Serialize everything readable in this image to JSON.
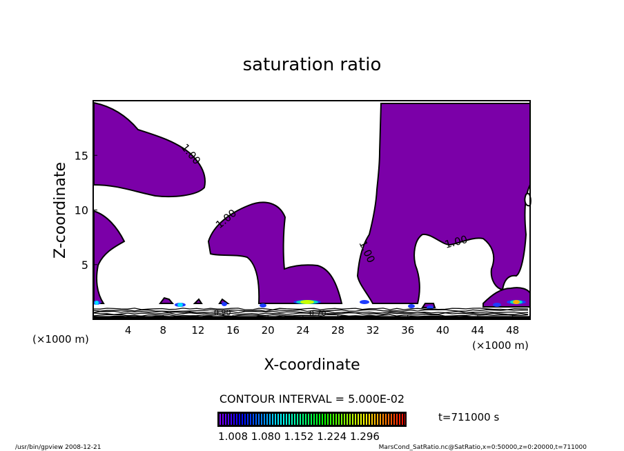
{
  "chart_data": {
    "type": "contour",
    "title": "saturation ratio",
    "xlabel": "X-coordinate",
    "ylabel": "Z-coordinate",
    "x_unit_label": "(×1000 m)",
    "y_unit_label": "(×1000 m)",
    "xlim": [
      0,
      50
    ],
    "ylim": [
      0,
      20
    ],
    "xticks": [
      4,
      8,
      12,
      16,
      20,
      24,
      28,
      32,
      36,
      40,
      44,
      48
    ],
    "yticks": [
      5,
      10,
      15
    ],
    "contour_labels": [
      "1.00",
      "1.00",
      "1.00",
      "1.00",
      "1.00",
      "0.90",
      "0.70"
    ],
    "contour_interval_text": "CONTOUR INTERVAL = 5.000E-02",
    "colorbar": {
      "min": 1.0,
      "max": 1.35,
      "tick_labels": [
        "1.008",
        "1.080",
        "1.152",
        "1.224",
        "1.296"
      ]
    },
    "fill_color": "#7b00a8",
    "time_label": "t=711000 s"
  },
  "footer": {
    "left": "/usr/bin/gpview   2008-12-21",
    "right": "MarsCond_SatRatio.nc@SatRatio,x=0:50000,z=0:20000,t=711000"
  }
}
